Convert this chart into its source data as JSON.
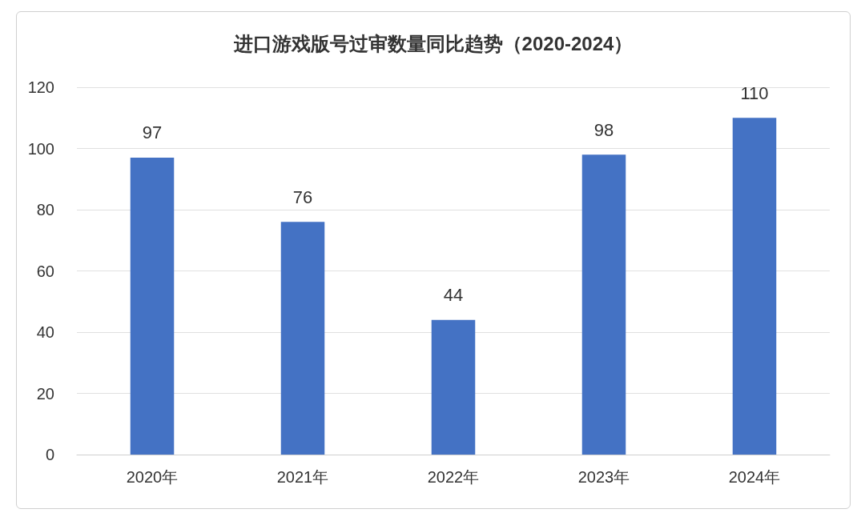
{
  "chart_data": {
    "type": "bar",
    "title": "进口游戏版号过审数量同比趋势（2020-2024）",
    "categories": [
      "2020年",
      "2021年",
      "2022年",
      "2023年",
      "2024年"
    ],
    "values": [
      97,
      76,
      44,
      98,
      110
    ],
    "color": "#4472c4",
    "ylim": [
      0,
      120
    ],
    "yticks": [
      0,
      20,
      40,
      60,
      80,
      100,
      120
    ],
    "grid": "y",
    "data_labels": true
  }
}
